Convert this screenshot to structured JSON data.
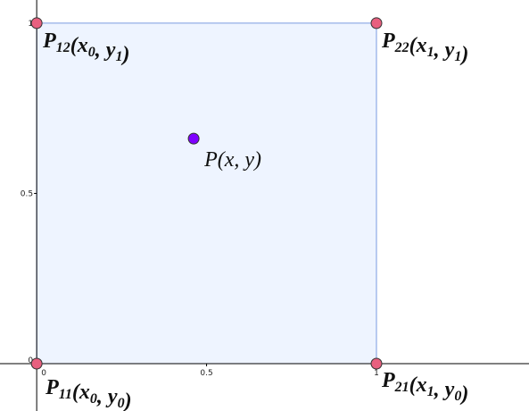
{
  "axes": {
    "xlim": [
      -0.108,
      1.449
    ],
    "ylim": [
      -0.139,
      1.068
    ],
    "xticks": [
      0,
      0.5,
      1
    ],
    "yticks": [
      0,
      0.5,
      1
    ]
  },
  "polygon": {
    "fill": "#eef4ff",
    "stroke": "#7a9ae0"
  },
  "points": [
    {
      "x": 0,
      "y": 0,
      "color": "#e8607f",
      "bold": true,
      "dx": 10,
      "dy": 34,
      "label": [
        {
          "t": "P"
        },
        {
          "sub": "11"
        },
        {
          "t": "(x"
        },
        {
          "sub": "0"
        },
        {
          "t": ", y"
        },
        {
          "sub": "0"
        },
        {
          "t": ")"
        }
      ]
    },
    {
      "x": 1,
      "y": 0,
      "color": "#e8607f",
      "bold": true,
      "dx": 6,
      "dy": 26,
      "label": [
        {
          "t": "P"
        },
        {
          "sub": "21"
        },
        {
          "t": "(x"
        },
        {
          "sub": "1"
        },
        {
          "t": ", y"
        },
        {
          "sub": "0"
        },
        {
          "t": ")"
        }
      ]
    },
    {
      "x": 0,
      "y": 1,
      "color": "#e8607f",
      "bold": true,
      "dx": 7,
      "dy": 27,
      "label": [
        {
          "t": "P"
        },
        {
          "sub": "12"
        },
        {
          "t": "(x"
        },
        {
          "sub": "0"
        },
        {
          "t": ", y"
        },
        {
          "sub": "1"
        },
        {
          "t": ")"
        }
      ]
    },
    {
      "x": 1,
      "y": 1,
      "color": "#e8607f",
      "bold": true,
      "dx": 6,
      "dy": 27,
      "label": [
        {
          "t": "P"
        },
        {
          "sub": "22"
        },
        {
          "t": "(x"
        },
        {
          "sub": "1"
        },
        {
          "t": ", y"
        },
        {
          "sub": "1"
        },
        {
          "t": ")"
        }
      ]
    },
    {
      "x": 0.462,
      "y": 0.661,
      "color": "#7f00ff",
      "bold": false,
      "dx": 12,
      "dy": 31,
      "label": [
        {
          "t": "P(x, y)"
        }
      ]
    }
  ]
}
